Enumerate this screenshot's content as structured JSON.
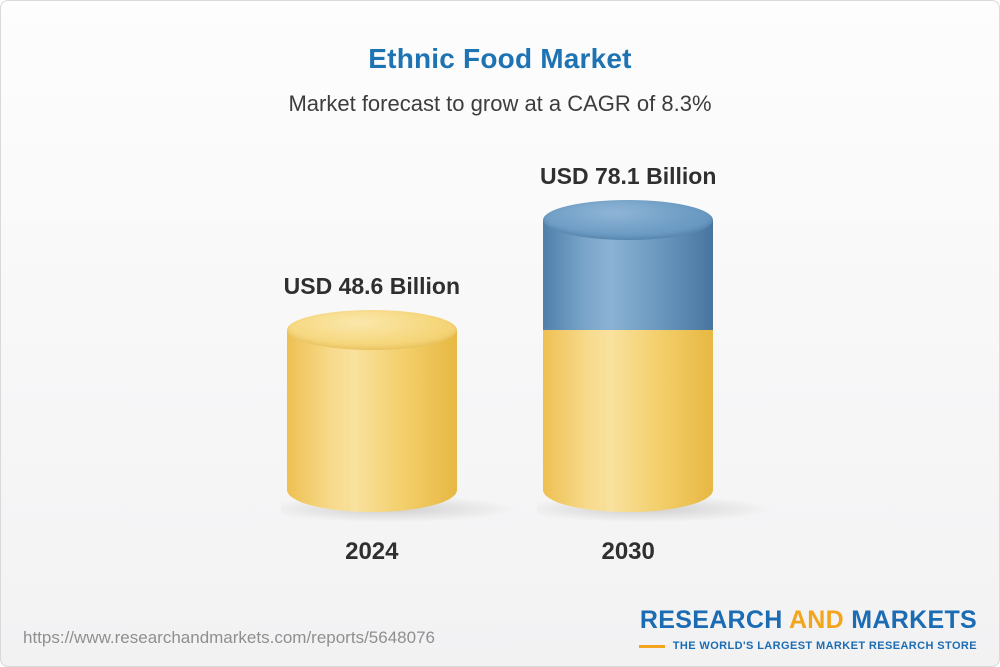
{
  "title": "Ethnic Food Market",
  "subtitle": "Market forecast to grow at a CAGR of 8.3%",
  "chart_data": {
    "type": "bar",
    "variant": "3d-cylinder",
    "title": "Ethnic Food Market",
    "subtitle": "Market forecast to grow at a CAGR of 8.3%",
    "categories": [
      "2024",
      "2030"
    ],
    "values": [
      48.6,
      78.1
    ],
    "value_labels": [
      "USD 48.6 Billion",
      "USD 78.1 Billion"
    ],
    "unit": "USD Billion",
    "cagr_percent": 8.3,
    "legend": false,
    "gridlines": false,
    "colors": {
      "gold": "#F2CC61",
      "blue": "#5E8DB7",
      "title_blue": "#1E73B2",
      "label_dark": "#2F2F2F"
    }
  },
  "footer": {
    "url": "https://www.researchandmarkets.com/reports/5648076",
    "logo": {
      "research": "RESEARCH",
      "and": "AND",
      "markets": "MARKETS",
      "tagline": "THE WORLD'S LARGEST MARKET RESEARCH STORE"
    }
  }
}
